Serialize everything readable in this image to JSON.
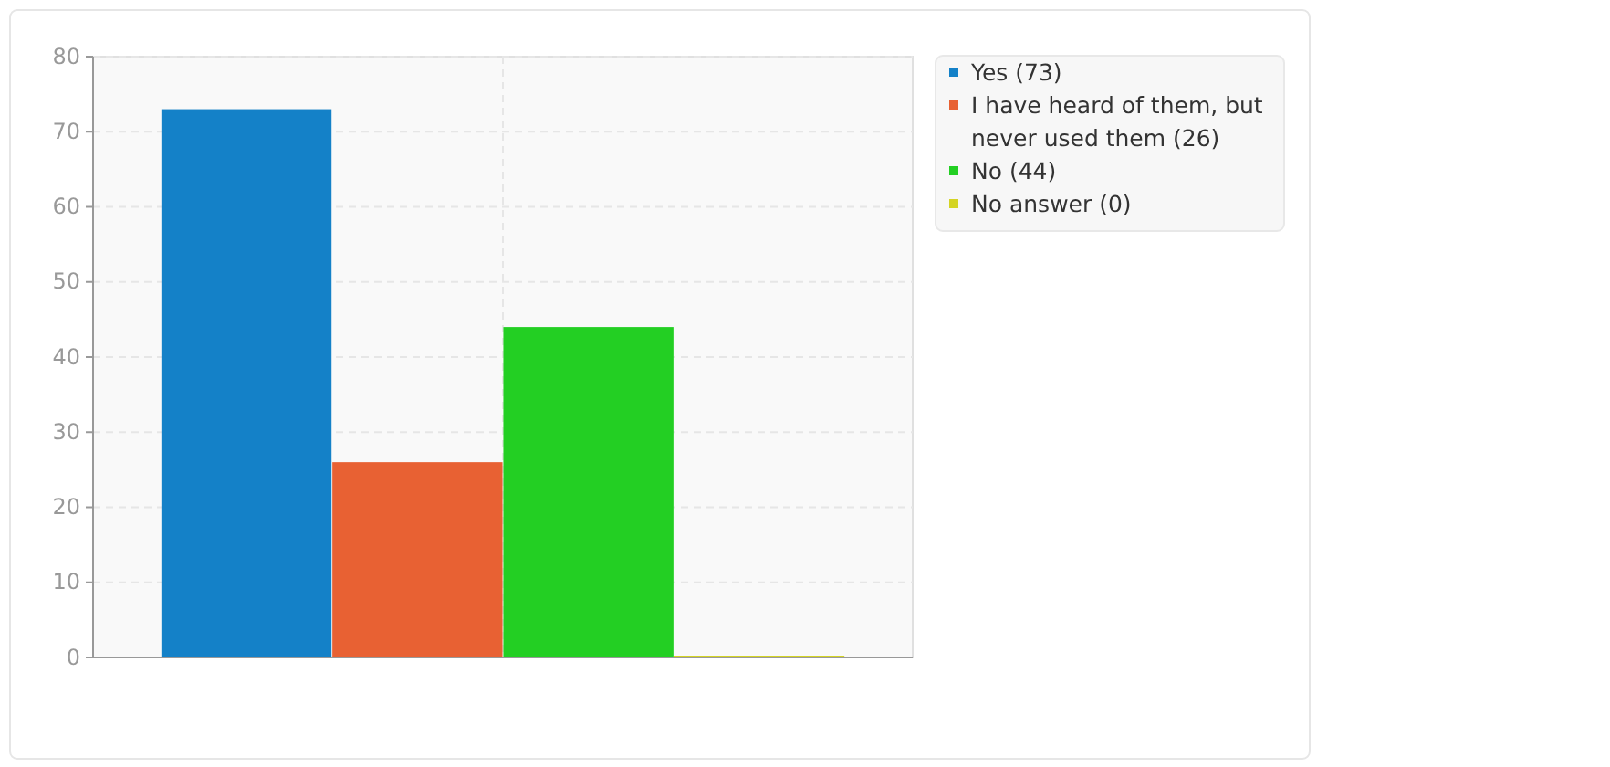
{
  "chart_data": {
    "type": "bar",
    "categories": [
      null
    ],
    "series": [
      {
        "name": "Yes (73)",
        "color": "#1481c8",
        "values": [
          73
        ]
      },
      {
        "name": "I have heard of them, but never used them (26)",
        "color": "#e86133",
        "values": [
          26
        ]
      },
      {
        "name": "No (44)",
        "color": "#23cf23",
        "values": [
          44
        ]
      },
      {
        "name": "No answer (0)",
        "color": "#d4d424",
        "values": [
          0
        ]
      }
    ],
    "ylim": [
      0,
      80
    ],
    "yticks": [
      0,
      10,
      20,
      30,
      40,
      50,
      60,
      70,
      80
    ],
    "grid": true,
    "legend": "top right"
  }
}
